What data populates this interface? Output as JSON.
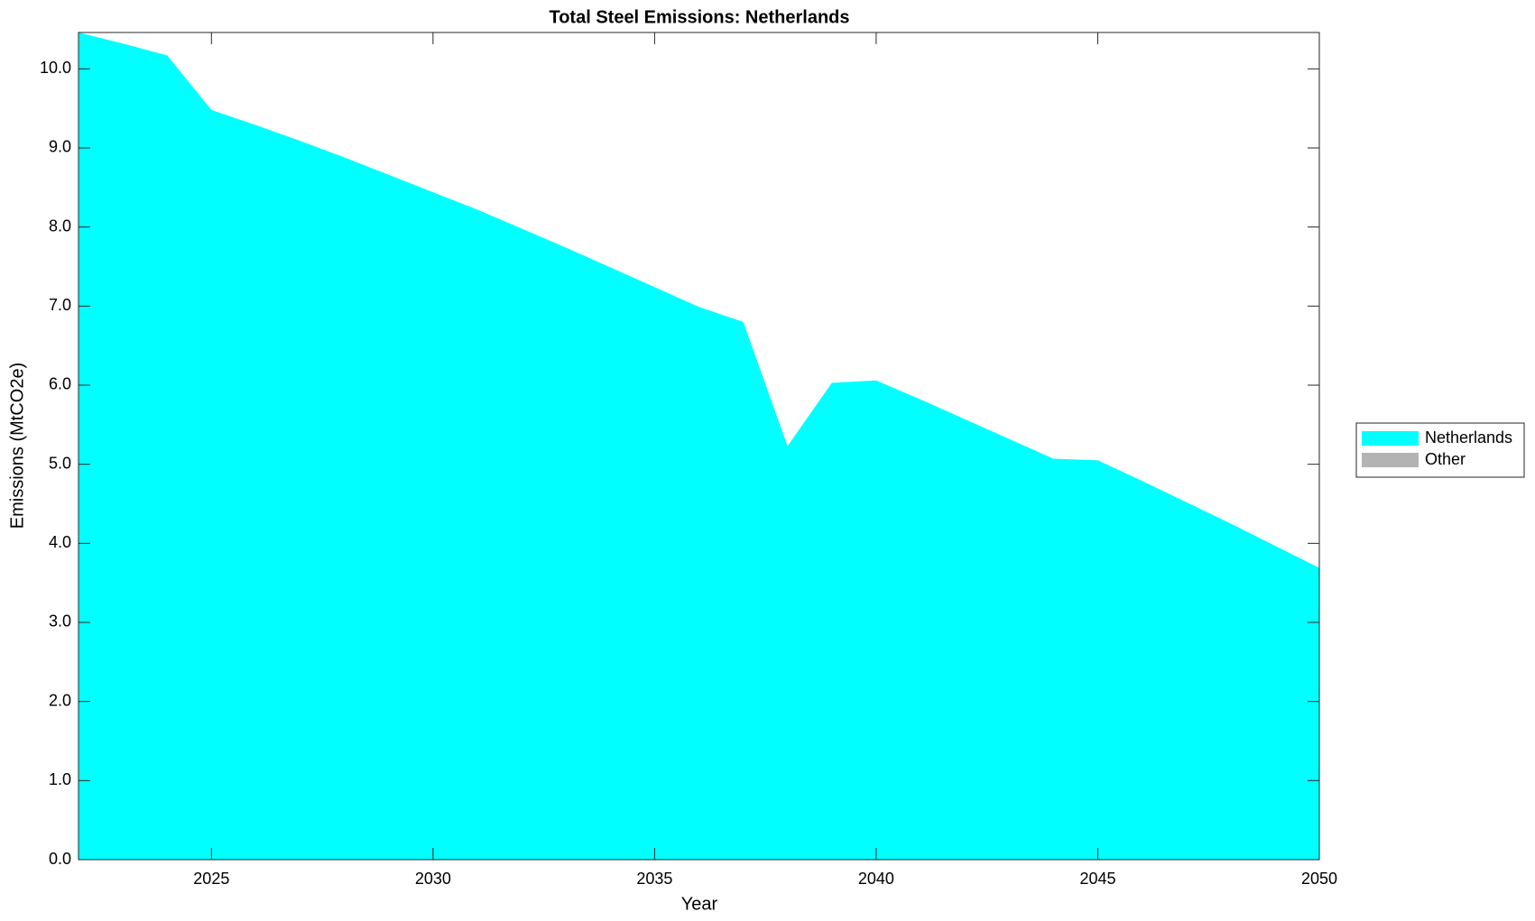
{
  "chart_data": {
    "type": "stacked_area",
    "title": "Total Steel Emissions: Netherlands",
    "xlabel": "Year",
    "ylabel": "Emissions (MtCO2e)",
    "x": [
      2022,
      2023,
      2024,
      2025,
      2026,
      2027,
      2028,
      2029,
      2030,
      2031,
      2032,
      2033,
      2034,
      2035,
      2036,
      2037,
      2038,
      2039,
      2040,
      2041,
      2042,
      2043,
      2044,
      2045,
      2046,
      2047,
      2048,
      2049,
      2050
    ],
    "series": [
      {
        "name": "Netherlands",
        "color": "#00ffff",
        "values": [
          10.46,
          10.32,
          10.17,
          9.48,
          9.29,
          9.09,
          8.88,
          8.66,
          8.44,
          8.22,
          7.98,
          7.74,
          7.49,
          7.24,
          6.99,
          6.8,
          5.23,
          6.03,
          6.06,
          5.82,
          5.57,
          5.32,
          5.07,
          5.05,
          4.79,
          4.52,
          4.25,
          3.97,
          3.69
        ]
      },
      {
        "name": "Other",
        "color": "#b3b3b3",
        "values": [
          0,
          0,
          0,
          0,
          0,
          0,
          0,
          0,
          0,
          0,
          0,
          0,
          0,
          0,
          0,
          0,
          0,
          0,
          0,
          0,
          0,
          0,
          0,
          0,
          0,
          0,
          0,
          0,
          0
        ]
      }
    ],
    "xlim": [
      2022,
      2050
    ],
    "xticks": [
      2025,
      2030,
      2035,
      2040,
      2045,
      2050
    ],
    "ylim": [
      0,
      10.46
    ],
    "yticks": [
      {
        "value": 0,
        "label": "0.0"
      },
      {
        "value": 1,
        "label": "1.0"
      },
      {
        "value": 2,
        "label": "2.0"
      },
      {
        "value": 3,
        "label": "3.0"
      },
      {
        "value": 4,
        "label": "4.0"
      },
      {
        "value": 5,
        "label": "5.0"
      },
      {
        "value": 6,
        "label": "6.0"
      },
      {
        "value": 7,
        "label": "7.0"
      },
      {
        "value": 8,
        "label": "8.0"
      },
      {
        "value": 9,
        "label": "9.0"
      },
      {
        "value": 10,
        "label": "10.0"
      }
    ],
    "grid": false,
    "legend": "right"
  }
}
